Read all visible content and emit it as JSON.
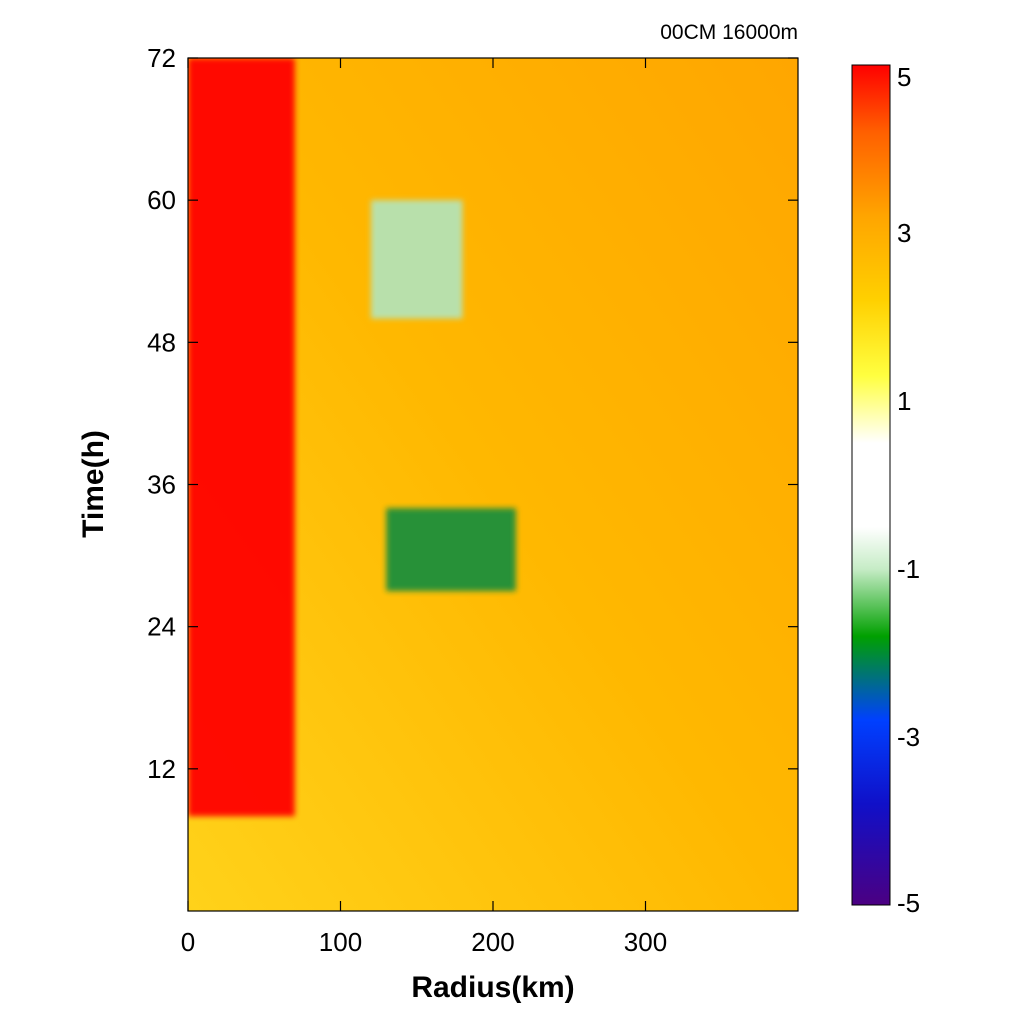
{
  "chart_data": {
    "type": "heatmap",
    "title": "00CM 16000m",
    "xlabel": "Radius(km)",
    "ylabel": "Time(h)",
    "xlim": [
      0,
      400
    ],
    "ylim": [
      0,
      72
    ],
    "x_ticks": [
      0,
      100,
      200,
      300
    ],
    "y_ticks": [
      12,
      24,
      36,
      48,
      60,
      72
    ],
    "colorbar": {
      "range": [
        -5,
        5
      ],
      "tick_labels": [
        "5",
        "3",
        "1",
        "-1",
        "-3",
        "-5"
      ],
      "tick_values": [
        5,
        3,
        1,
        -1,
        -3,
        -5
      ],
      "colors": [
        "#4b0082",
        "#1414d8",
        "#0050ff",
        "#00a000",
        "#b8e6b8",
        "#ffffff",
        "#ffff00",
        "#ffa500",
        "#ff0000"
      ]
    },
    "features": [
      {
        "description_ignored": false,
        "x_range": [
          0,
          70
        ],
        "y_range": [
          8,
          72
        ],
        "value": 5
      },
      {
        "x_range": [
          130,
          215
        ],
        "y_range": [
          27,
          34
        ],
        "value": -2.5
      },
      {
        "x_range": [
          120,
          180
        ],
        "y_range": [
          50,
          60
        ],
        "value": -1
      }
    ]
  }
}
